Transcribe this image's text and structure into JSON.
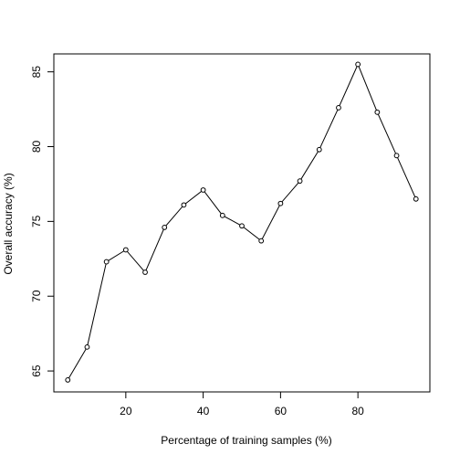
{
  "chart_data": {
    "type": "line",
    "xlabel": "Percentage of training samples (%)",
    "ylabel": "Overall accuracy (%)",
    "xlim": [
      1.4,
      98.6
    ],
    "ylim": [
      63.6,
      86.2
    ],
    "xticks": [
      20,
      40,
      60,
      80
    ],
    "yticks": [
      65,
      70,
      75,
      80,
      85
    ],
    "grid": false,
    "markers": "open-circle",
    "series": [
      {
        "x": [
          5,
          10,
          15,
          20,
          25,
          30,
          35,
          40,
          45,
          50,
          55,
          60,
          65,
          70,
          75,
          80,
          85,
          90,
          95
        ],
        "y": [
          64.4,
          66.6,
          72.3,
          73.1,
          71.6,
          74.6,
          76.1,
          77.1,
          75.4,
          74.7,
          73.7,
          76.2,
          77.7,
          79.8,
          82.6,
          85.5,
          82.3,
          79.4,
          76.5
        ]
      }
    ],
    "colors": {
      "line": "#000000",
      "marker_stroke": "#000000",
      "marker_fill": "#ffffff"
    }
  }
}
